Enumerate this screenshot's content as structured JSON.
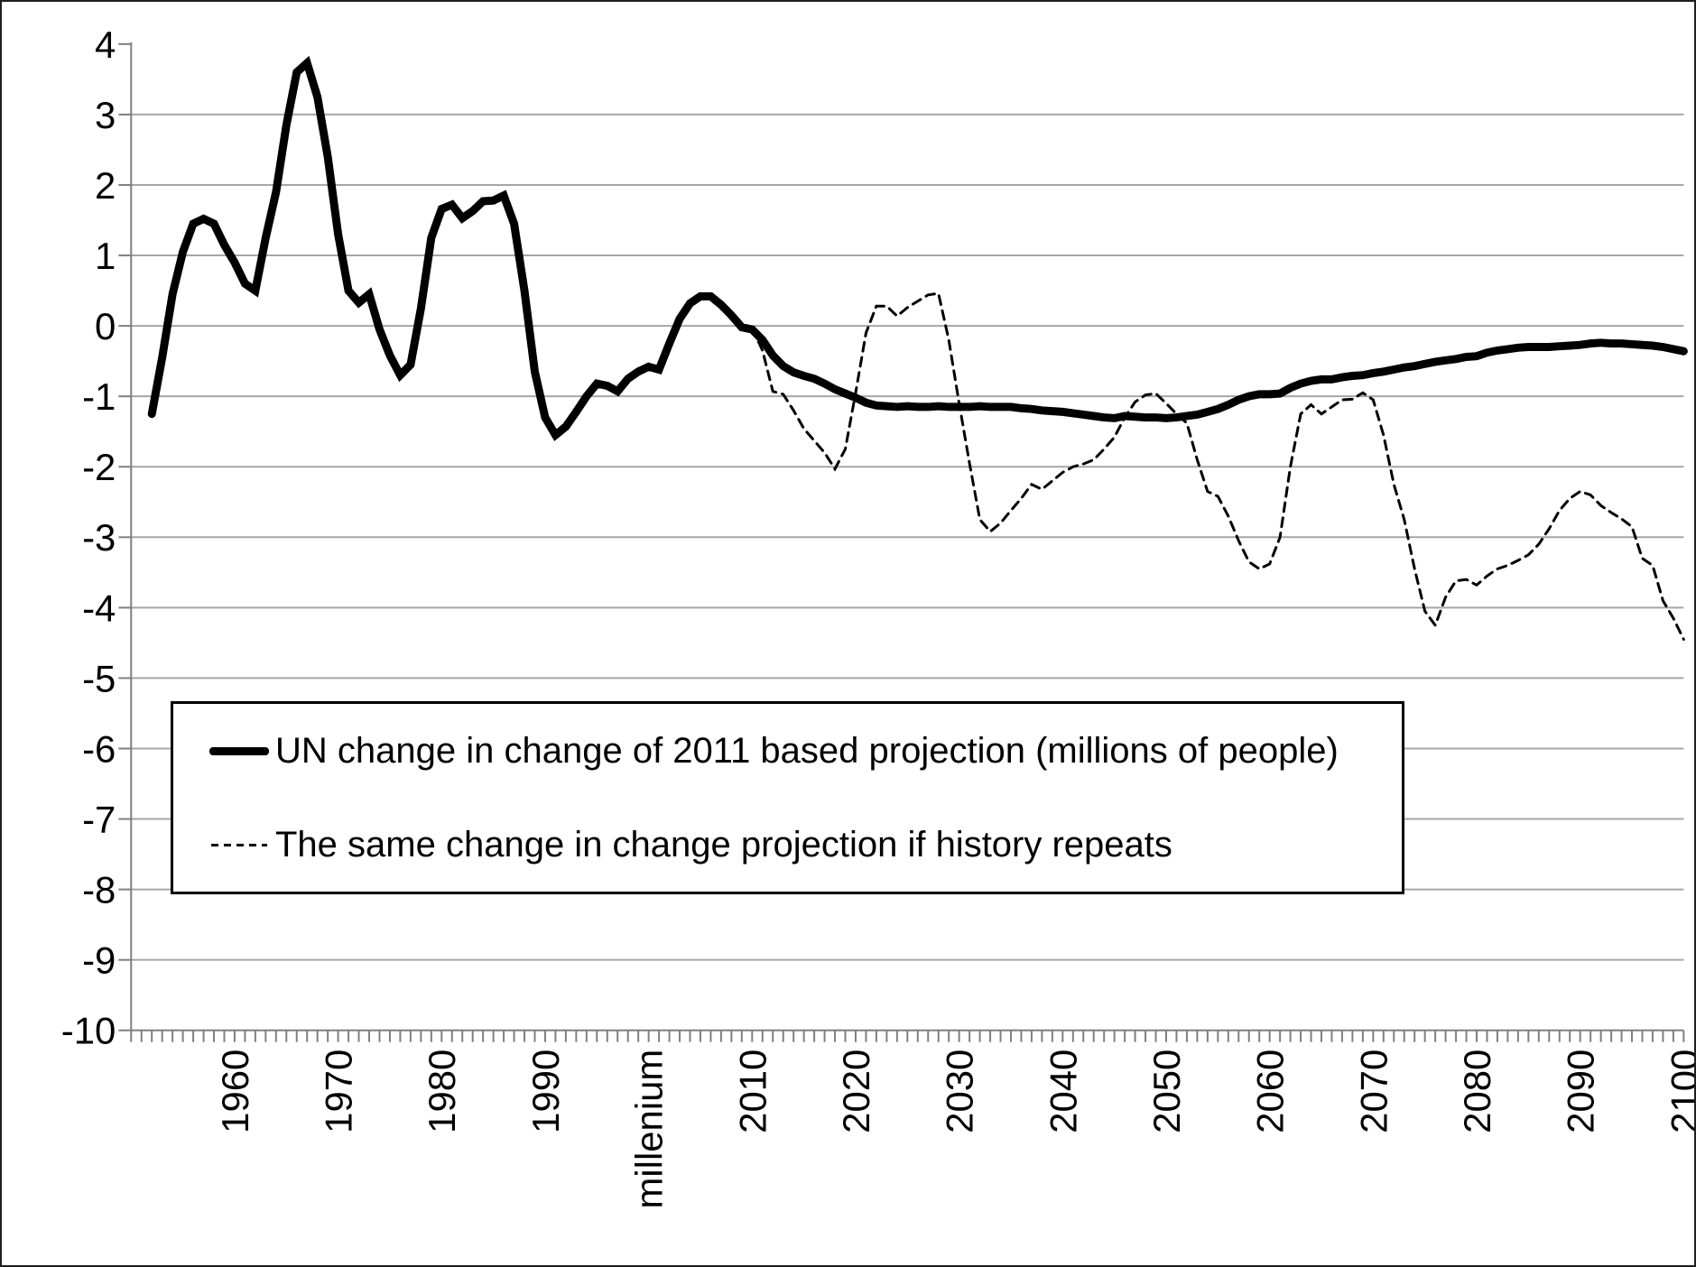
{
  "figure": {
    "background": "#ffffff",
    "border_color": "#1f1f1f"
  },
  "chart_data": {
    "type": "line",
    "title": "",
    "xlabel": "",
    "ylabel": "",
    "xlim": [
      1950,
      2100
    ],
    "ylim": [
      -10,
      4
    ],
    "grid": "horizontal-only",
    "legend_position": "inside-bottom-left-box",
    "y_ticks": [
      4,
      3,
      2,
      1,
      0,
      -1,
      -2,
      -3,
      -4,
      -5,
      -6,
      -7,
      -8,
      -9,
      -10
    ],
    "x_minor_tick_step_years": 1,
    "x_tick_labels": [
      {
        "year": 1960,
        "label": "1960"
      },
      {
        "year": 1970,
        "label": "1970"
      },
      {
        "year": 1980,
        "label": "1980"
      },
      {
        "year": 1990,
        "label": "1990"
      },
      {
        "year": 2000,
        "label": "millenium"
      },
      {
        "year": 2010,
        "label": "2010"
      },
      {
        "year": 2020,
        "label": "2020"
      },
      {
        "year": 2030,
        "label": "2030"
      },
      {
        "year": 2040,
        "label": "2040"
      },
      {
        "year": 2050,
        "label": "2050"
      },
      {
        "year": 2060,
        "label": "2060"
      },
      {
        "year": 2070,
        "label": "2070"
      },
      {
        "year": 2080,
        "label": "2080"
      },
      {
        "year": 2090,
        "label": "2090"
      },
      {
        "year": 2100,
        "label": "2100"
      }
    ],
    "series": [
      {
        "name": "UN change in change of 2011 based projection (millions of people)",
        "style": "solid",
        "stroke_width": 9,
        "color": "#000000",
        "start_year": 1952,
        "values": [
          -1.25,
          -0.45,
          0.45,
          1.05,
          1.45,
          1.52,
          1.45,
          1.15,
          0.9,
          0.6,
          0.5,
          1.25,
          1.9,
          2.85,
          3.6,
          3.73,
          3.25,
          2.4,
          1.3,
          0.5,
          0.33,
          0.45,
          -0.05,
          -0.42,
          -0.7,
          -0.55,
          0.25,
          1.25,
          1.66,
          1.72,
          1.53,
          1.63,
          1.77,
          1.78,
          1.85,
          1.45,
          0.5,
          -0.65,
          -1.3,
          -1.55,
          -1.43,
          -1.22,
          -1.0,
          -0.82,
          -0.85,
          -0.93,
          -0.75,
          -0.65,
          -0.58,
          -0.62,
          -0.25,
          0.1,
          0.32,
          0.42,
          0.42,
          0.3,
          0.15,
          -0.02,
          -0.05,
          -0.2,
          -0.42,
          -0.57,
          -0.66,
          -0.71,
          -0.75,
          -0.82,
          -0.9,
          -0.96,
          -1.02,
          -1.09,
          -1.13,
          -1.14,
          -1.15,
          -1.14,
          -1.15,
          -1.15,
          -1.14,
          -1.15,
          -1.15,
          -1.15,
          -1.14,
          -1.15,
          -1.15,
          -1.15,
          -1.17,
          -1.18,
          -1.2,
          -1.21,
          -1.22,
          -1.24,
          -1.26,
          -1.28,
          -1.3,
          -1.31,
          -1.28,
          -1.29,
          -1.3,
          -1.3,
          -1.31,
          -1.3,
          -1.28,
          -1.26,
          -1.22,
          -1.18,
          -1.12,
          -1.05,
          -1.0,
          -0.97,
          -0.97,
          -0.96,
          -0.88,
          -0.82,
          -0.78,
          -0.76,
          -0.76,
          -0.73,
          -0.71,
          -0.7,
          -0.67,
          -0.65,
          -0.62,
          -0.59,
          -0.57,
          -0.54,
          -0.51,
          -0.49,
          -0.47,
          -0.44,
          -0.43,
          -0.38,
          -0.35,
          -0.33,
          -0.31,
          -0.3,
          -0.3,
          -0.3,
          -0.29,
          -0.28,
          -0.27,
          -0.25,
          -0.24,
          -0.25,
          -0.25,
          -0.26,
          -0.27,
          -0.28,
          -0.3,
          -0.33,
          -0.36
        ]
      },
      {
        "name": "The same change in change projection if history repeats",
        "style": "dashed",
        "stroke_width": 3,
        "color": "#000000",
        "start_year": 2010,
        "values": [
          -0.03,
          -0.35,
          -0.93,
          -0.97,
          -1.2,
          -1.46,
          -1.63,
          -1.8,
          -2.03,
          -1.75,
          -0.95,
          -0.1,
          0.28,
          0.28,
          0.14,
          0.26,
          0.35,
          0.44,
          0.46,
          -0.2,
          -1.1,
          -1.95,
          -2.75,
          -2.92,
          -2.8,
          -2.62,
          -2.45,
          -2.25,
          -2.32,
          -2.2,
          -2.08,
          -2.0,
          -1.96,
          -1.9,
          -1.75,
          -1.58,
          -1.3,
          -1.08,
          -0.98,
          -0.96,
          -1.1,
          -1.25,
          -1.38,
          -1.9,
          -2.35,
          -2.42,
          -2.7,
          -3.05,
          -3.35,
          -3.45,
          -3.38,
          -3.0,
          -2.0,
          -1.25,
          -1.12,
          -1.25,
          -1.15,
          -1.05,
          -1.04,
          -0.95,
          -1.05,
          -1.55,
          -2.25,
          -2.75,
          -3.45,
          -4.05,
          -4.25,
          -3.85,
          -3.62,
          -3.6,
          -3.68,
          -3.55,
          -3.45,
          -3.4,
          -3.33,
          -3.25,
          -3.1,
          -2.88,
          -2.62,
          -2.45,
          -2.35,
          -2.4,
          -2.55,
          -2.65,
          -2.74,
          -2.85,
          -3.3,
          -3.4,
          -3.9,
          -4.15,
          -4.45
        ]
      }
    ]
  },
  "legend": {
    "entries": [
      {
        "label": "UN change in change of 2011 based projection (millions of people)"
      },
      {
        "label": "The same change in change projection if history repeats"
      }
    ]
  }
}
